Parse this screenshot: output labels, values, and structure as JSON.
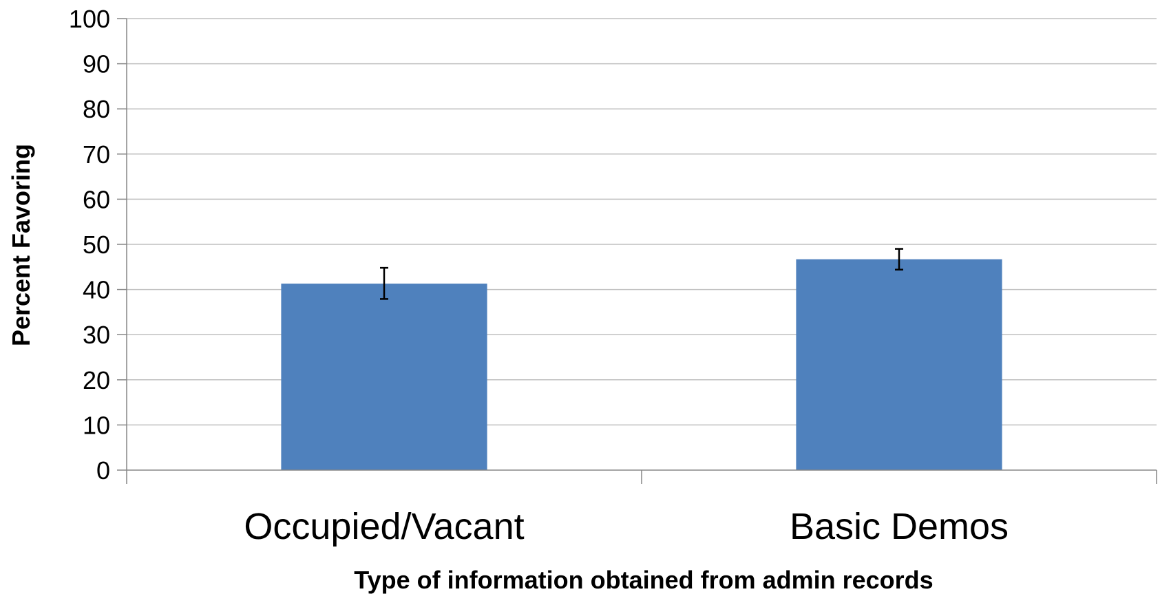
{
  "chart_data": {
    "type": "bar",
    "title": "",
    "xlabel": "Type of information obtained from admin records",
    "ylabel": "Percent Favoring",
    "categories": [
      "Occupied/Vacant",
      "Basic Demos"
    ],
    "series": [
      {
        "values": [
          41.3,
          46.7
        ],
        "error_low": [
          37.9,
          44.4
        ],
        "error_high": [
          44.8,
          49.0
        ],
        "color": "#4F81BD"
      }
    ],
    "ylim": [
      0,
      100
    ],
    "yticks": [
      0,
      10,
      20,
      30,
      40,
      50,
      60,
      70,
      80,
      90,
      100
    ],
    "grid": true,
    "legend": "none"
  },
  "colors": {
    "bar": "#4F81BD",
    "grid": "#BFBFBF",
    "axis": "#868686",
    "error_bar": "#000000"
  }
}
